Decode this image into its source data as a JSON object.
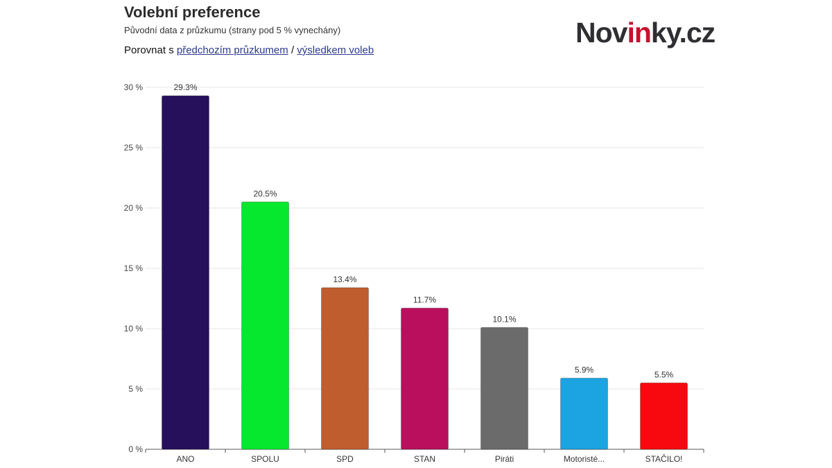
{
  "header": {
    "title": "Volební preference",
    "subtitle": "Původní data z průzkumu (strany pod 5 % vynechány)",
    "compare_prefix": "Porovnat s ",
    "compare_link_previous": "předchozím průzkumem",
    "compare_separator": " / ",
    "compare_link_election": "výsledkem voleb"
  },
  "logo": {
    "part1": "Nov",
    "part2": "in",
    "part3": "ky.cz",
    "text_color": "#2f2f33",
    "accent_color": "#c8102e"
  },
  "chart_data": {
    "type": "bar",
    "title": "",
    "xlabel": "",
    "ylabel": "",
    "ylim": [
      0,
      30
    ],
    "yticks": [
      0,
      5,
      10,
      15,
      20,
      25,
      30
    ],
    "ytick_labels": [
      "0 %",
      "5 %",
      "10 %",
      "15 %",
      "20 %",
      "25 %",
      "30 %"
    ],
    "grid": true,
    "legend": "none",
    "categories": [
      "ANO",
      "SPOLU",
      "SPD",
      "STAN",
      "Piráti",
      "Motoristé...",
      "STAČILO!"
    ],
    "values": [
      29.3,
      20.5,
      13.4,
      11.7,
      10.1,
      5.9,
      5.5
    ],
    "value_labels": [
      "29.3%",
      "20.5%",
      "13.4%",
      "11.7%",
      "10.1%",
      "5.9%",
      "5.5%"
    ],
    "colors": [
      "#26105c",
      "#06e82d",
      "#c05d2e",
      "#b90f5c",
      "#6b6b6b",
      "#1ca3e2",
      "#f7090f"
    ]
  }
}
